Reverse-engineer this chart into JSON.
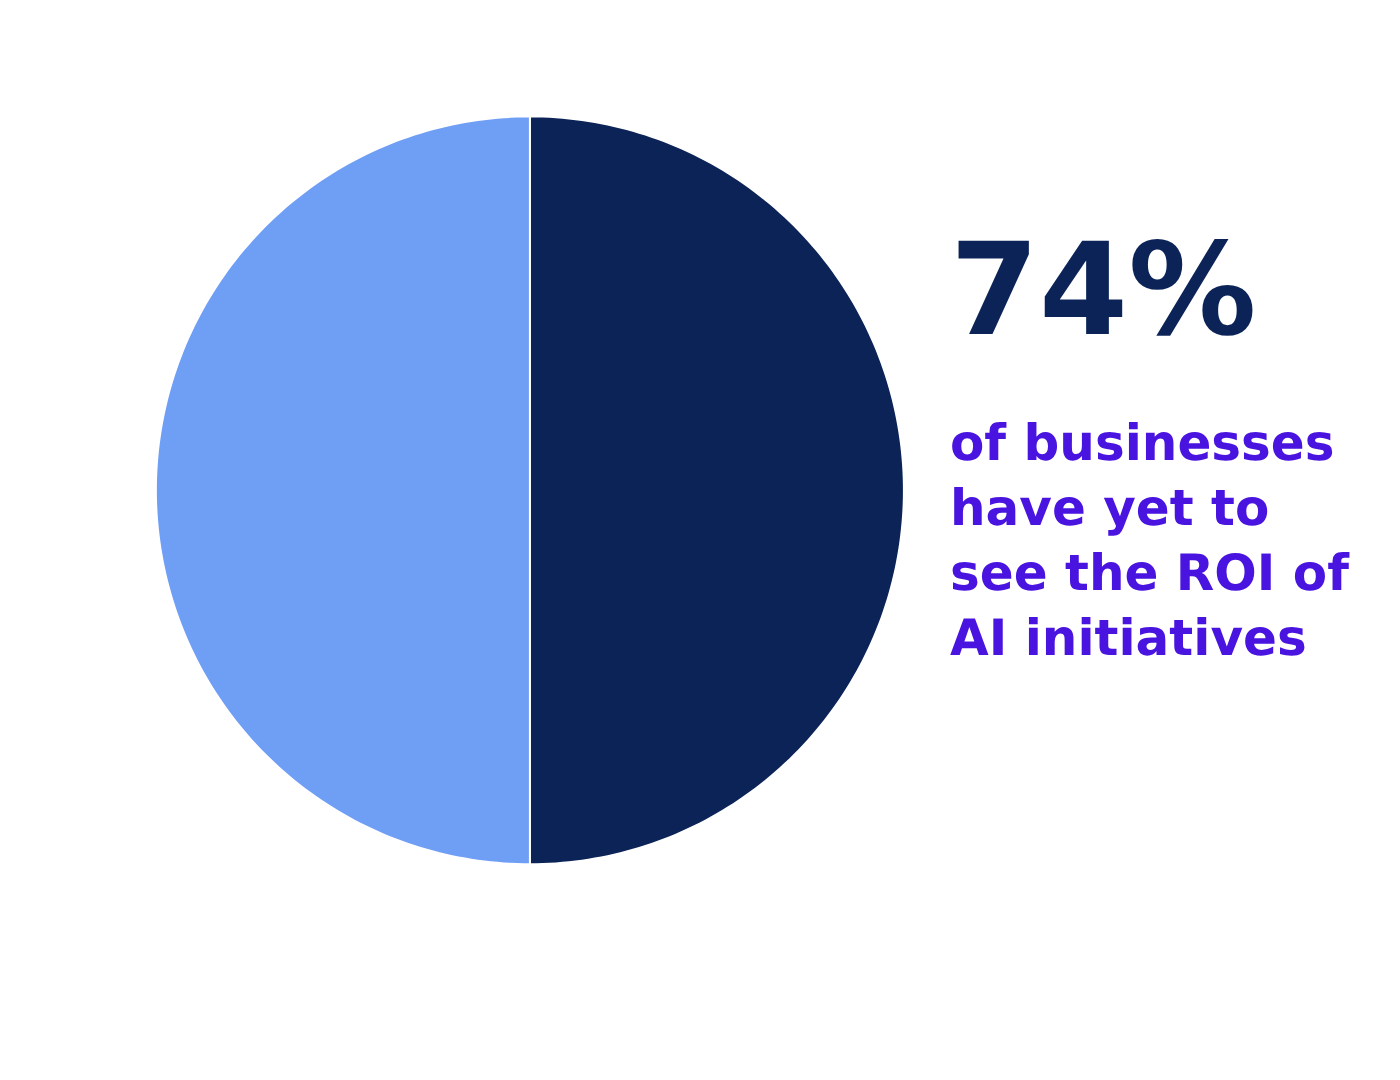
{
  "chart_data": {
    "type": "pie",
    "categories": [
      null,
      null
    ],
    "values": [
      50,
      50
    ],
    "colors": [
      "#0b2357",
      "#6f9ef5"
    ],
    "annotations": [
      "74%",
      "of businesses\nhave yet to\nsee the ROI of\nAI initiatives"
    ],
    "legend": false
  }
}
